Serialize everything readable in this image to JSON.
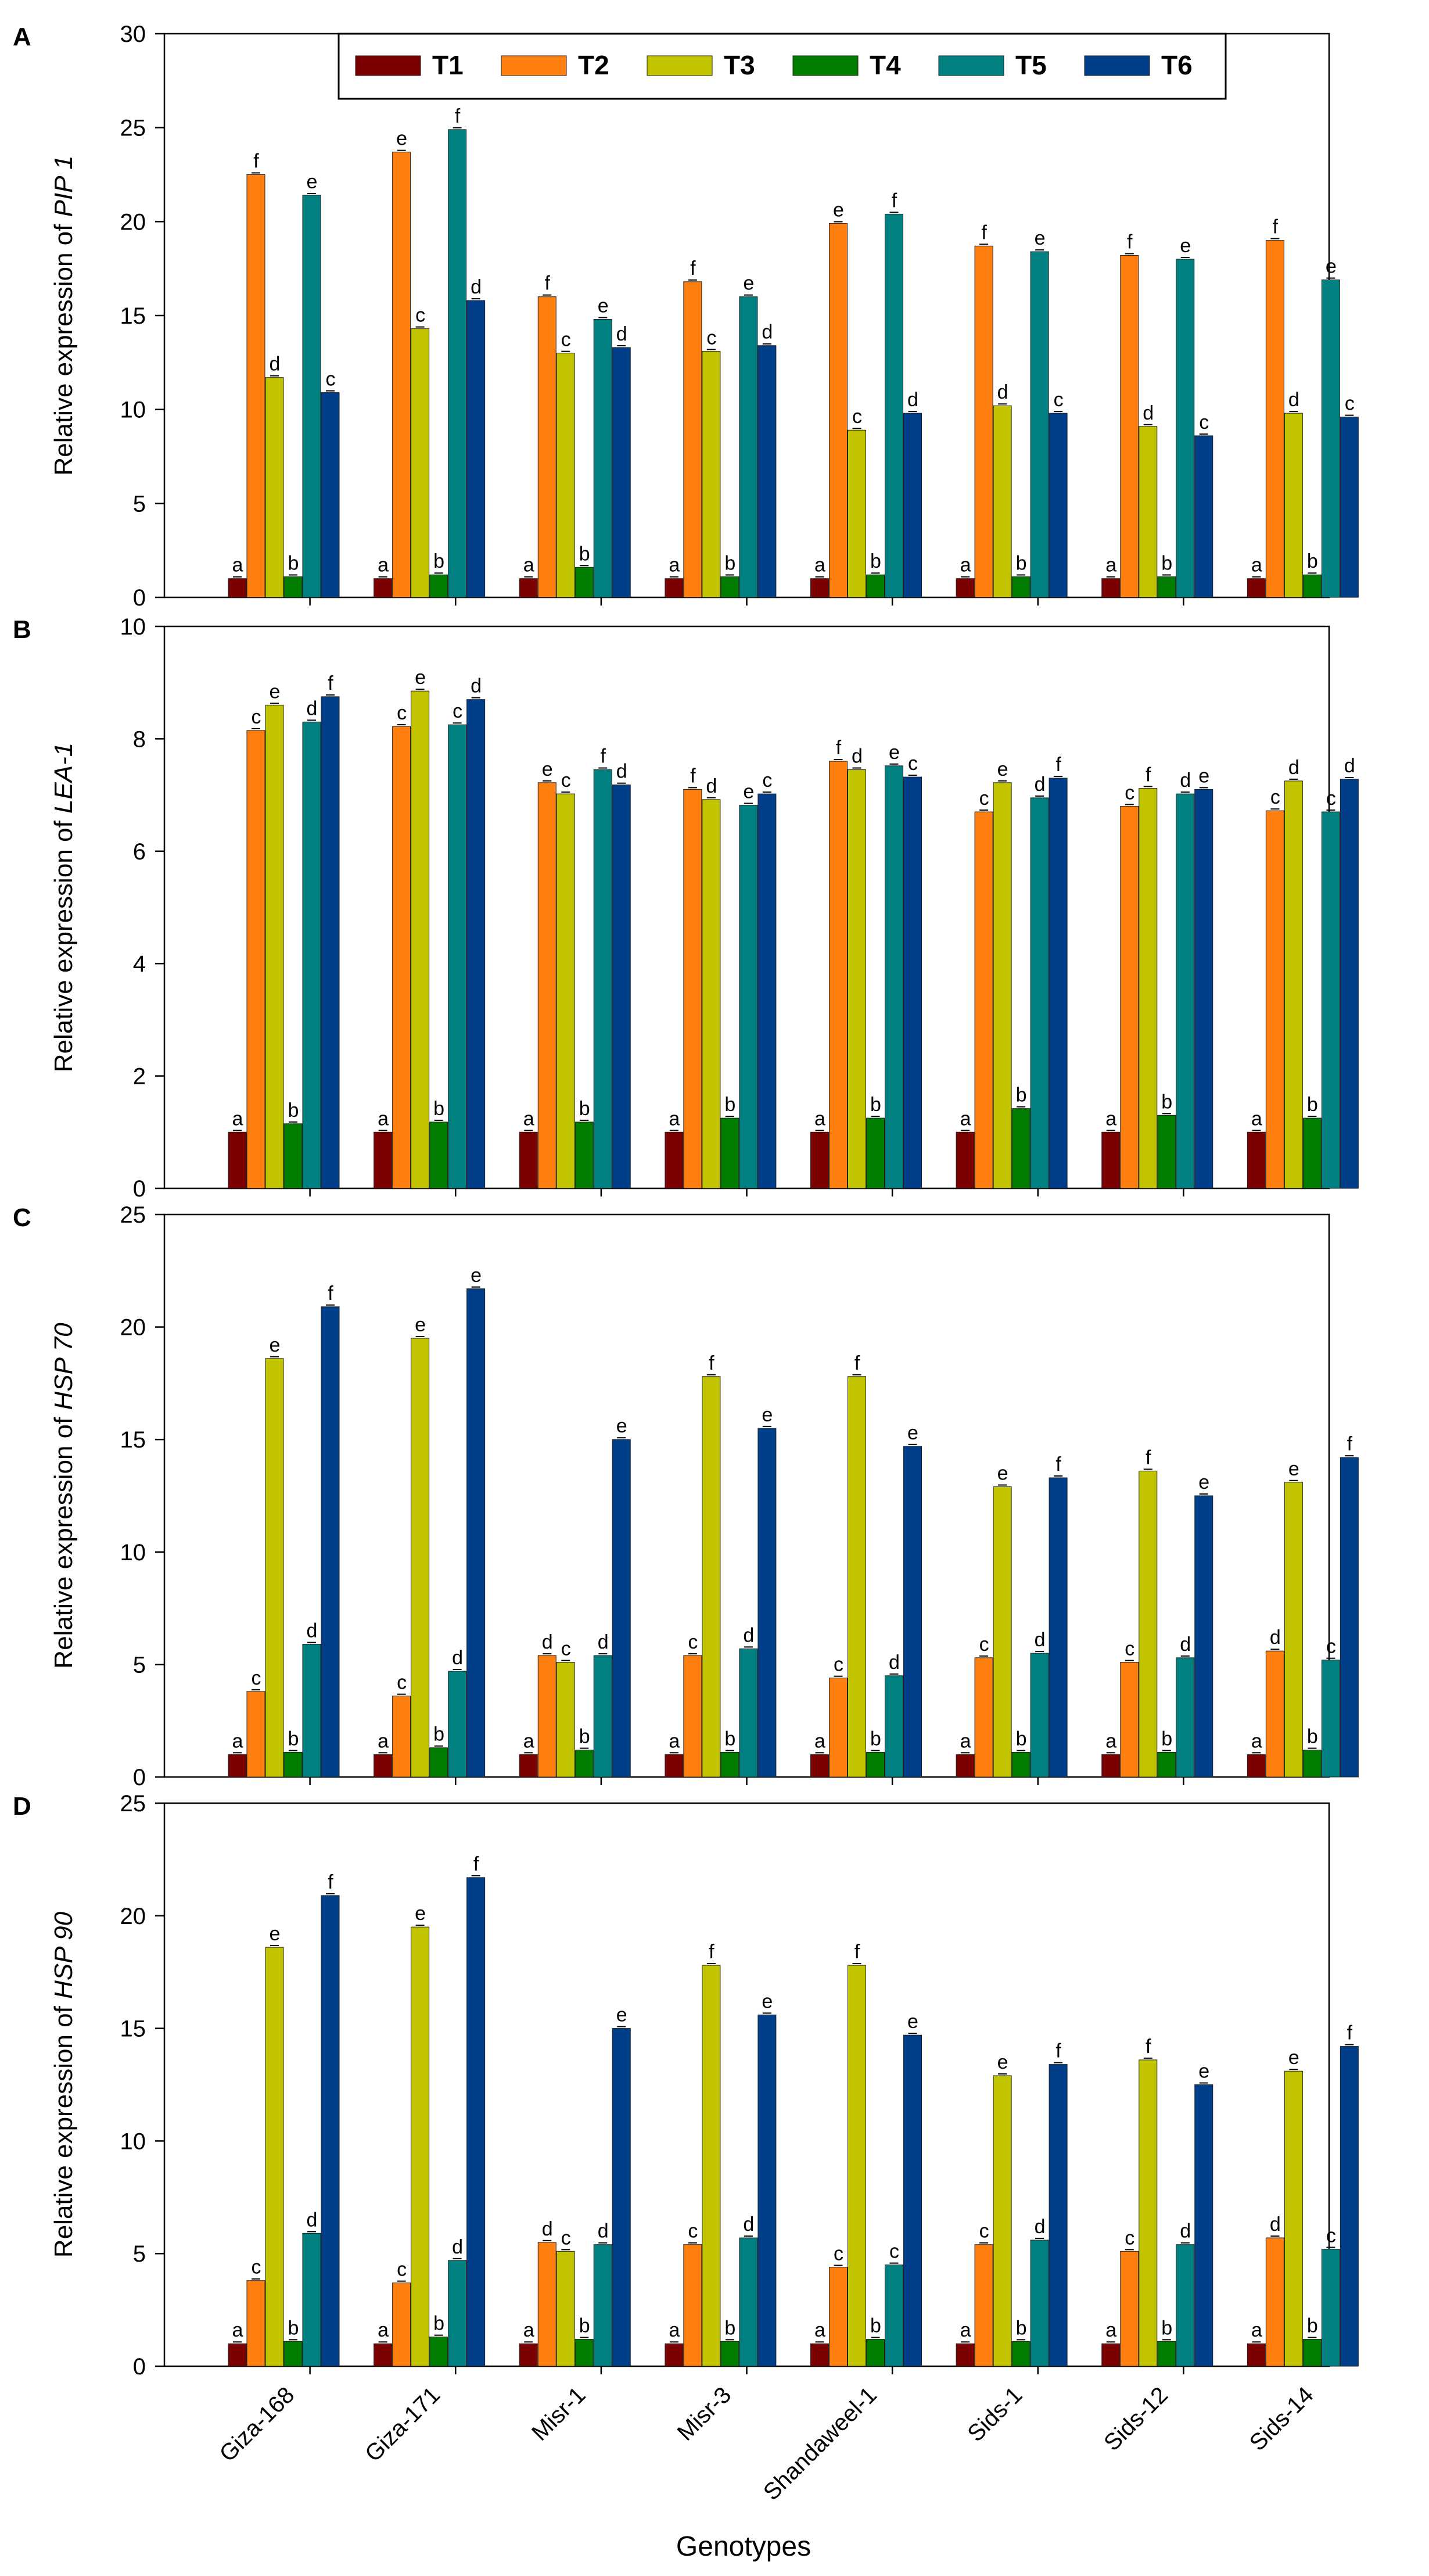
{
  "legend": {
    "items": [
      {
        "label": "T1",
        "color": "#7b0000"
      },
      {
        "label": "T2",
        "color": "#ff7f10"
      },
      {
        "label": "T3",
        "color": "#c3c400"
      },
      {
        "label": "T4",
        "color": "#007d00"
      },
      {
        "label": "T5",
        "color": "#008080"
      },
      {
        "label": "T6",
        "color": "#003e8a"
      }
    ],
    "position": "top-center"
  },
  "xlabel": "Genotypes",
  "chart_data": [
    {
      "panel_label": "A",
      "type": "bar",
      "ylabel_prefix": "Relative expression of ",
      "ylabel_gene": "PIP 1",
      "ylim": [
        0,
        30
      ],
      "yticks": [
        "0",
        "5",
        "10",
        "15",
        "20",
        "25",
        "30"
      ],
      "categories": [
        "Giza-168",
        "Giza-171",
        "Misr-1",
        "Misr-3",
        "Shandaweel-1",
        "Sids-1",
        "Sids-12",
        "Sids-14"
      ],
      "series": [
        {
          "name": "T1",
          "values": [
            1,
            1,
            1,
            1,
            1,
            1,
            1,
            1
          ],
          "letters": [
            "a",
            "a",
            "a",
            "a",
            "a",
            "a",
            "a",
            "a"
          ]
        },
        {
          "name": "T2",
          "values": [
            22.5,
            23.7,
            16.0,
            16.8,
            19.9,
            18.7,
            18.2,
            19.0
          ],
          "letters": [
            "f",
            "e",
            "f",
            "f",
            "e",
            "f",
            "f",
            "f"
          ]
        },
        {
          "name": "T3",
          "values": [
            11.7,
            14.3,
            13.0,
            13.1,
            8.9,
            10.2,
            9.1,
            9.8
          ],
          "letters": [
            "d",
            "c",
            "c",
            "c",
            "c",
            "d",
            "d",
            "d"
          ]
        },
        {
          "name": "T4",
          "values": [
            1.1,
            1.2,
            1.6,
            1.1,
            1.2,
            1.1,
            1.1,
            1.2
          ],
          "letters": [
            "b",
            "b",
            "b",
            "b",
            "b",
            "b",
            "b",
            "b"
          ]
        },
        {
          "name": "T5",
          "values": [
            21.4,
            24.9,
            14.8,
            16.0,
            20.4,
            18.4,
            18.0,
            16.9
          ],
          "letters": [
            "e",
            "f",
            "e",
            "e",
            "f",
            "e",
            "e",
            "e"
          ]
        },
        {
          "name": "T6",
          "values": [
            10.9,
            15.8,
            13.3,
            13.4,
            9.8,
            9.8,
            8.6,
            9.6
          ],
          "letters": [
            "c",
            "d",
            "d",
            "d",
            "d",
            "c",
            "c",
            "c"
          ]
        }
      ]
    },
    {
      "panel_label": "B",
      "type": "bar",
      "ylabel_prefix": "Relative expression of ",
      "ylabel_gene": "LEA-1",
      "ylim": [
        0,
        10
      ],
      "yticks": [
        "0",
        "2",
        "4",
        "6",
        "8",
        "10"
      ],
      "categories": [
        "Giza-168",
        "Giza-171",
        "Misr-1",
        "Misr-3",
        "Shandaweel-1",
        "Sids-1",
        "Sids-12",
        "Sids-14"
      ],
      "series": [
        {
          "name": "T1",
          "values": [
            1,
            1,
            1,
            1,
            1,
            1,
            1,
            1
          ],
          "letters": [
            "a",
            "a",
            "a",
            "a",
            "a",
            "a",
            "a",
            "a"
          ]
        },
        {
          "name": "T2",
          "values": [
            8.15,
            8.22,
            7.22,
            7.1,
            7.6,
            6.7,
            6.8,
            6.72
          ],
          "letters": [
            "c",
            "c",
            "e",
            "f",
            "f",
            "c",
            "c",
            "c"
          ]
        },
        {
          "name": "T3",
          "values": [
            8.6,
            8.85,
            7.02,
            6.92,
            7.45,
            7.22,
            7.12,
            7.25
          ],
          "letters": [
            "e",
            "e",
            "c",
            "d",
            "d",
            "e",
            "f",
            "d"
          ]
        },
        {
          "name": "T4",
          "values": [
            1.15,
            1.18,
            1.18,
            1.25,
            1.25,
            1.42,
            1.3,
            1.25
          ],
          "letters": [
            "b",
            "b",
            "b",
            "b",
            "b",
            "b",
            "b",
            "b"
          ]
        },
        {
          "name": "T5",
          "values": [
            8.3,
            8.25,
            7.45,
            6.82,
            7.52,
            6.95,
            7.02,
            6.7
          ],
          "letters": [
            "d",
            "c",
            "f",
            "e",
            "e",
            "d",
            "d",
            "c"
          ]
        },
        {
          "name": "T6",
          "values": [
            8.75,
            8.7,
            7.18,
            7.02,
            7.32,
            7.3,
            7.1,
            7.28
          ],
          "letters": [
            "f",
            "d",
            "d",
            "c",
            "c",
            "f",
            "e",
            "d"
          ]
        }
      ]
    },
    {
      "panel_label": "C",
      "type": "bar",
      "ylabel_prefix": "Relative expression of ",
      "ylabel_gene": "HSP 70",
      "ylim": [
        0,
        25
      ],
      "yticks": [
        "0",
        "5",
        "10",
        "15",
        "20",
        "25"
      ],
      "categories": [
        "Giza-168",
        "Giza-171",
        "Misr-1",
        "Misr-3",
        "Shandaweel-1",
        "Sids-1",
        "Sids-12",
        "Sids-14"
      ],
      "series": [
        {
          "name": "T1",
          "values": [
            1,
            1,
            1,
            1,
            1,
            1,
            1,
            1
          ],
          "letters": [
            "a",
            "a",
            "a",
            "a",
            "a",
            "a",
            "a",
            "a"
          ]
        },
        {
          "name": "T2",
          "values": [
            3.8,
            3.6,
            5.4,
            5.4,
            4.4,
            5.3,
            5.1,
            5.6
          ],
          "letters": [
            "c",
            "c",
            "d",
            "c",
            "c",
            "c",
            "c",
            "d"
          ]
        },
        {
          "name": "T3",
          "values": [
            18.6,
            19.5,
            5.1,
            17.8,
            17.8,
            12.9,
            13.6,
            13.1
          ],
          "letters": [
            "e",
            "e",
            "c",
            "f",
            "f",
            "e",
            "f",
            "e"
          ]
        },
        {
          "name": "T4",
          "values": [
            1.1,
            1.3,
            1.2,
            1.1,
            1.1,
            1.1,
            1.1,
            1.2
          ],
          "letters": [
            "b",
            "b",
            "b",
            "b",
            "b",
            "b",
            "b",
            "b"
          ]
        },
        {
          "name": "T5",
          "values": [
            5.9,
            4.7,
            5.4,
            5.7,
            4.5,
            5.5,
            5.3,
            5.2
          ],
          "letters": [
            "d",
            "d",
            "d",
            "d",
            "d",
            "d",
            "d",
            "c"
          ]
        },
        {
          "name": "T6",
          "values": [
            20.9,
            21.7,
            15.0,
            15.5,
            14.7,
            13.3,
            12.5,
            14.2
          ],
          "letters": [
            "f",
            "e",
            "e",
            "e",
            "e",
            "f",
            "e",
            "f"
          ]
        }
      ]
    },
    {
      "panel_label": "D",
      "type": "bar",
      "ylabel_prefix": "Relative expression of ",
      "ylabel_gene": "HSP 90",
      "ylim": [
        0,
        25
      ],
      "yticks": [
        "0",
        "5",
        "10",
        "15",
        "20",
        "25"
      ],
      "categories": [
        "Giza-168",
        "Giza-171",
        "Misr-1",
        "Misr-3",
        "Shandaweel-1",
        "Sids-1",
        "Sids-12",
        "Sids-14"
      ],
      "series": [
        {
          "name": "T1",
          "values": [
            1,
            1,
            1,
            1,
            1,
            1,
            1,
            1
          ],
          "letters": [
            "a",
            "a",
            "a",
            "a",
            "a",
            "a",
            "a",
            "a"
          ]
        },
        {
          "name": "T2",
          "values": [
            3.8,
            3.7,
            5.5,
            5.4,
            4.4,
            5.4,
            5.1,
            5.7
          ],
          "letters": [
            "c",
            "c",
            "d",
            "c",
            "c",
            "c",
            "c",
            "d"
          ]
        },
        {
          "name": "T3",
          "values": [
            18.6,
            19.5,
            5.1,
            17.8,
            17.8,
            12.9,
            13.6,
            13.1
          ],
          "letters": [
            "e",
            "e",
            "c",
            "f",
            "f",
            "e",
            "f",
            "e"
          ]
        },
        {
          "name": "T4",
          "values": [
            1.1,
            1.3,
            1.2,
            1.1,
            1.2,
            1.1,
            1.1,
            1.2
          ],
          "letters": [
            "b",
            "b",
            "b",
            "b",
            "b",
            "b",
            "b",
            "b"
          ]
        },
        {
          "name": "T5",
          "values": [
            5.9,
            4.7,
            5.4,
            5.7,
            4.5,
            5.6,
            5.4,
            5.2
          ],
          "letters": [
            "d",
            "d",
            "d",
            "d",
            "c",
            "d",
            "d",
            "c"
          ]
        },
        {
          "name": "T6",
          "values": [
            20.9,
            21.7,
            15.0,
            15.6,
            14.7,
            13.4,
            12.5,
            14.2
          ],
          "letters": [
            "f",
            "f",
            "e",
            "e",
            "e",
            "f",
            "e",
            "f"
          ]
        }
      ]
    }
  ]
}
